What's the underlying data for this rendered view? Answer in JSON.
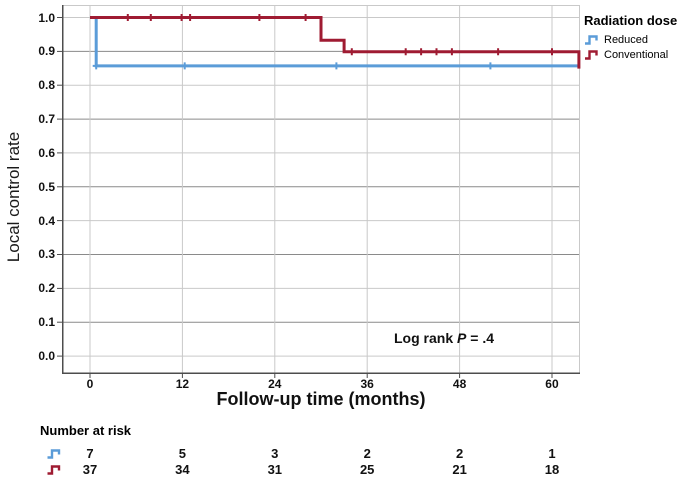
{
  "chart_data": {
    "type": "line",
    "subtype": "kaplan-meier-step",
    "xlabel": "Follow-up time (months)",
    "ylabel": "Local control rate",
    "xlim": [
      -3.64,
      63.64
    ],
    "ylim": [
      -0.053,
      1.037
    ],
    "xticks": [
      0,
      12,
      24,
      36,
      48,
      60
    ],
    "yticks": [
      "0.0",
      "0.1",
      "0.2",
      "0.3",
      "0.4",
      "0.5",
      "0.6",
      "0.7",
      "0.8",
      "0.9",
      "1.0"
    ],
    "grid": {
      "major_y_color": "#8a8a8a",
      "minor_y_color": "#c9c9c9",
      "x_color": "#c9c9c9",
      "spine_color": "#4d4d4d"
    },
    "legend_position": "outside-top-right",
    "series": [
      {
        "name": "Reduced",
        "color": "#5b9cd8",
        "steps": [
          [
            0,
            1.0
          ],
          [
            0.8,
            1.0
          ],
          [
            0.8,
            0.857
          ],
          [
            63.5,
            0.857
          ]
        ],
        "censors": [
          [
            0.8,
            0.857
          ],
          [
            12.3,
            0.857
          ],
          [
            32,
            0.857
          ],
          [
            52,
            0.857
          ]
        ]
      },
      {
        "name": "Conventional",
        "color": "#9f1b32",
        "steps": [
          [
            0,
            1.0
          ],
          [
            30,
            1.0
          ],
          [
            30,
            0.933
          ],
          [
            33,
            0.933
          ],
          [
            33,
            0.899
          ],
          [
            63.5,
            0.899
          ],
          [
            63.5,
            0.849
          ]
        ],
        "censors": [
          [
            4.9,
            1.0
          ],
          [
            7.9,
            1.0
          ],
          [
            11.9,
            1.0
          ],
          [
            13,
            1.0
          ],
          [
            22,
            1.0
          ],
          [
            28,
            1.0
          ],
          [
            34,
            0.899
          ],
          [
            41,
            0.899
          ],
          [
            43,
            0.899
          ],
          [
            45,
            0.899
          ],
          [
            47,
            0.899
          ],
          [
            53,
            0.899
          ],
          [
            60,
            0.899
          ]
        ]
      }
    ]
  },
  "annotation": {
    "prefix": "Log rank ",
    "p": "P",
    "suffix": " = .4"
  },
  "legend": {
    "title": "Radiation dose",
    "entries": [
      {
        "label": "Reduced",
        "color": "#5b9cd8"
      },
      {
        "label": "Conventional",
        "color": "#9f1b32"
      }
    ]
  },
  "risk_table": {
    "title": "Number at risk",
    "columns": [
      0,
      12,
      24,
      36,
      48,
      60
    ],
    "rows": [
      {
        "name": "Reduced",
        "color": "#5b9cd8",
        "values": [
          "7",
          "5",
          "3",
          "2",
          "2",
          "1"
        ]
      },
      {
        "name": "Conventional",
        "color": "#9f1b32",
        "values": [
          "37",
          "34",
          "31",
          "25",
          "21",
          "18"
        ]
      }
    ]
  }
}
